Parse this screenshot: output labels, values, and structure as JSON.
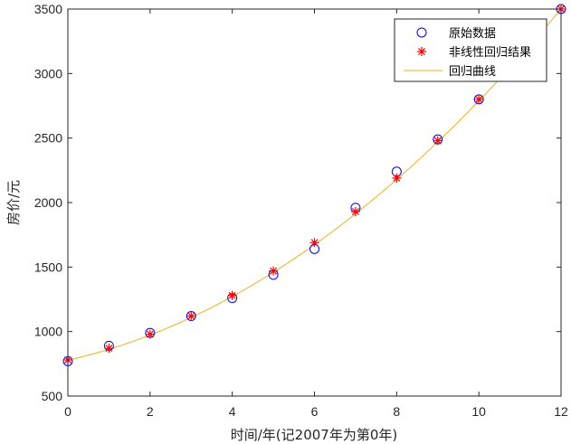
{
  "chart_data": {
    "type": "scatter",
    "title": "",
    "xlabel": "时间/年(记2007年为第0年)",
    "ylabel": "房价/元",
    "xlim": [
      0,
      12
    ],
    "ylim": [
      500,
      3500
    ],
    "xticks": [
      0,
      2,
      4,
      6,
      8,
      10,
      12
    ],
    "yticks": [
      500,
      1000,
      1500,
      2000,
      2500,
      3000,
      3500
    ],
    "grid": false,
    "legend_position": "top-right",
    "series": [
      {
        "name": "原始数据",
        "marker": "circle",
        "color": "#0000ff",
        "x": [
          0,
          1,
          2,
          3,
          4,
          5,
          6,
          7,
          8,
          9,
          10,
          12
        ],
        "y": [
          770,
          890,
          990,
          1120,
          1260,
          1440,
          1640,
          1960,
          2240,
          2490,
          2800,
          3500
        ]
      },
      {
        "name": "非线性回归结果",
        "marker": "asterisk",
        "color": "#ff0000",
        "x": [
          0,
          1,
          2,
          3,
          4,
          5,
          6,
          7,
          8,
          9,
          10,
          12
        ],
        "y": [
          780,
          870,
          980,
          1120,
          1280,
          1470,
          1690,
          1930,
          2190,
          2480,
          2800,
          3500
        ]
      },
      {
        "name": "回归曲线",
        "marker": "line",
        "color": "#edb120",
        "model": "y = 778 + 71.7x + 12.93x^2",
        "x": [
          0,
          12
        ],
        "coefficients": [
          778,
          71.7,
          12.93
        ]
      }
    ]
  }
}
